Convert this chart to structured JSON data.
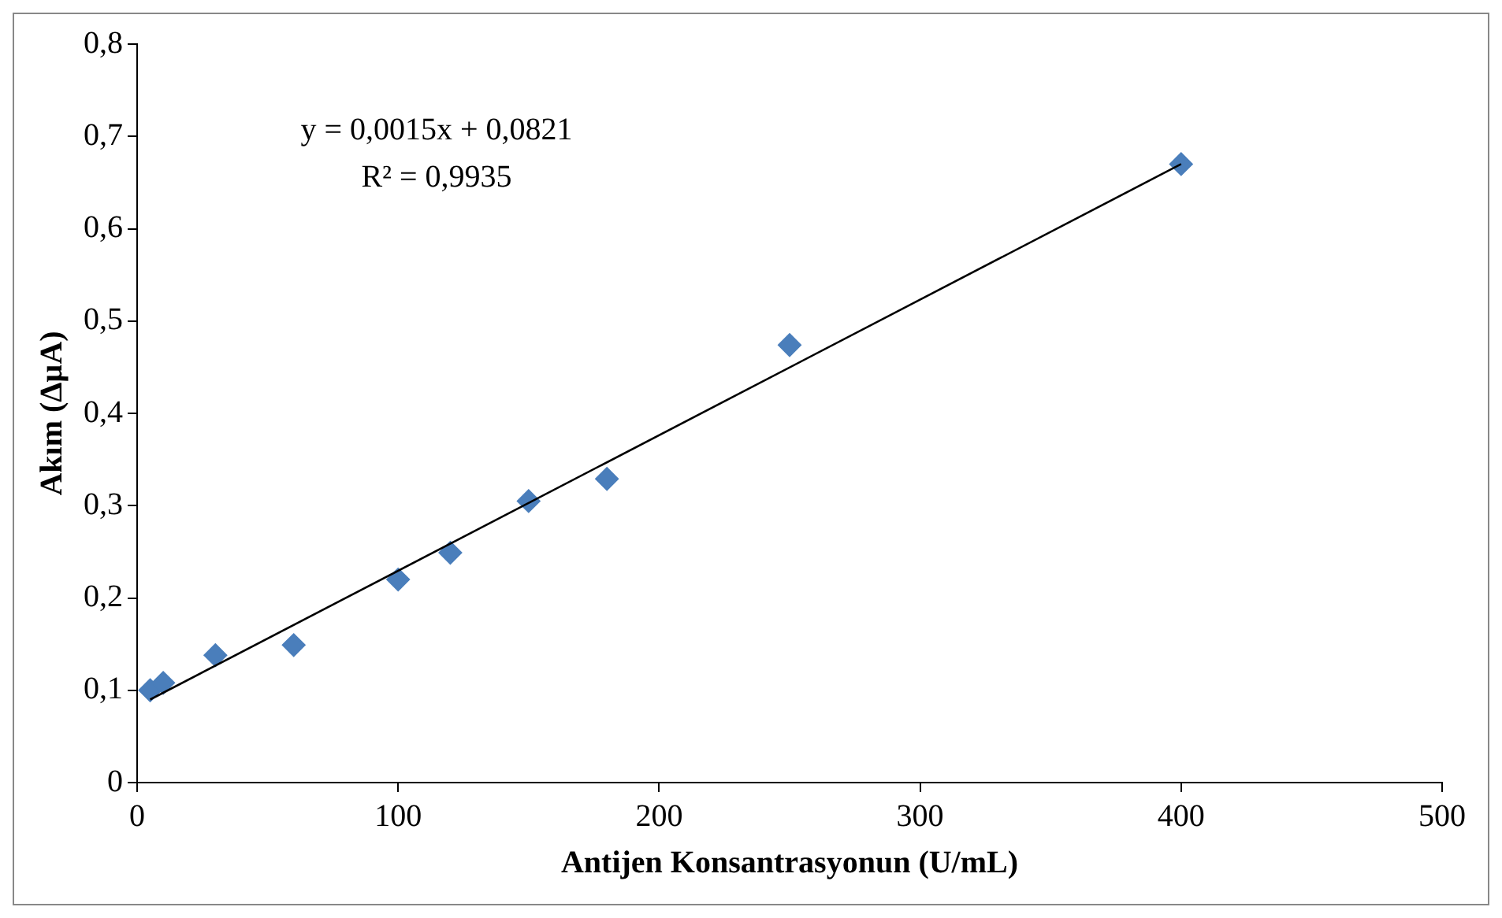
{
  "chart_data": {
    "type": "scatter",
    "xlabel": "Antijen Konsantrasyonun (U/mL)",
    "ylabel": "Akım (ΔµA)",
    "annotations": [
      "y = 0,0015x + 0,0821",
      "R² = 0,9935"
    ],
    "xlim": [
      0,
      500
    ],
    "xticks": [
      0,
      100,
      200,
      300,
      400,
      500
    ],
    "ylim": [
      0,
      0.8
    ],
    "yticks": [
      {
        "value": 0,
        "label": "0"
      },
      {
        "value": 0.1,
        "label": "0,1"
      },
      {
        "value": 0.2,
        "label": "0,2"
      },
      {
        "value": 0.3,
        "label": "0,3"
      },
      {
        "value": 0.4,
        "label": "0,4"
      },
      {
        "value": 0.5,
        "label": "0,5"
      },
      {
        "value": 0.6,
        "label": "0,6"
      },
      {
        "value": 0.7,
        "label": "0,7"
      },
      {
        "value": 0.8,
        "label": "0,8"
      }
    ],
    "grid": false,
    "legend": false,
    "marker": "diamond",
    "series": [
      {
        "type": "scatter",
        "color": "#4a7ebb",
        "x": [
          5,
          10,
          30,
          60,
          100,
          120,
          150,
          180,
          250,
          400
        ],
        "values": [
          0.1,
          0.108,
          0.138,
          0.149,
          0.22,
          0.249,
          0.305,
          0.329,
          0.474,
          0.67
        ]
      },
      {
        "type": "line",
        "color": "#000000",
        "marker": "none",
        "line_style": "solid",
        "x": [
          5,
          400
        ],
        "values": [
          0.09,
          0.67
        ]
      }
    ]
  }
}
